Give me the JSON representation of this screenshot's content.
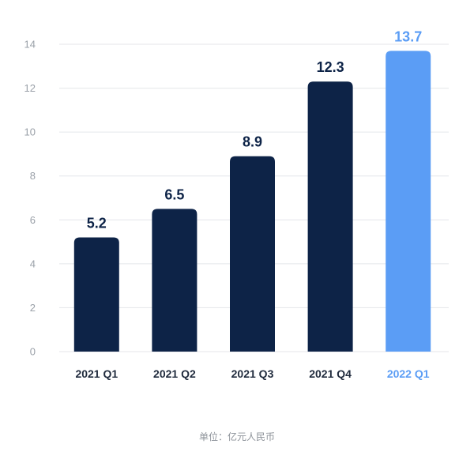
{
  "chart_data": {
    "type": "bar",
    "categories": [
      "2021 Q1",
      "2021 Q2",
      "2021 Q3",
      "2021 Q4",
      "2022 Q1"
    ],
    "values": [
      5.2,
      6.5,
      8.9,
      12.3,
      13.7
    ],
    "value_labels": [
      "5.2",
      "6.5",
      "8.9",
      "12.3",
      "13.7"
    ],
    "highlight_index": 4,
    "ylim": [
      0,
      14
    ],
    "yticks": [
      0,
      2,
      4,
      6,
      8,
      10,
      12,
      14
    ],
    "grid": true,
    "colors": {
      "bar": "#0d2347",
      "highlight": "#5b9df5",
      "grid": "#e4e6ea",
      "tick": "#9aa0a8"
    }
  },
  "footer": {
    "unit": "单位：亿元人民币"
  }
}
